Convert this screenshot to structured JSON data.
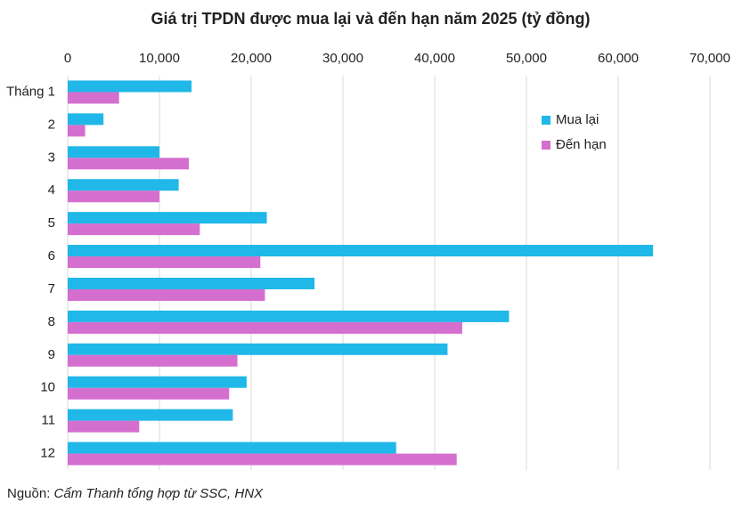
{
  "chart_data": {
    "type": "hbar",
    "title": "Giá trị TPDN được mua lại và đến hạn năm 2025 (tỷ đồng)",
    "categories": [
      "Tháng 1",
      "2",
      "3",
      "4",
      "5",
      "6",
      "7",
      "8",
      "9",
      "10",
      "11",
      "12"
    ],
    "series": [
      {
        "name": "Mua lại",
        "color": "#1fb8e8",
        "values": [
          13500,
          3900,
          10000,
          12100,
          21700,
          63800,
          26900,
          48100,
          41400,
          19500,
          18000,
          35800
        ]
      },
      {
        "name": "Đến hạn",
        "color": "#d56fcf",
        "values": [
          5600,
          1900,
          13200,
          10000,
          14400,
          21000,
          21500,
          43000,
          18500,
          17600,
          7800,
          42400
        ]
      }
    ],
    "xlim": [
      0,
      70000
    ],
    "xticks": [
      0,
      {
        "value": 10000,
        "label": "10,000"
      },
      {
        "value": 20000,
        "label": "20,000"
      },
      {
        "value": 30000,
        "label": "30,000"
      },
      {
        "value": 40000,
        "label": "40,000"
      },
      {
        "value": 50000,
        "label": "50,000"
      },
      {
        "value": 60000,
        "label": "60,000"
      },
      {
        "value": 70000,
        "label": "70,000"
      }
    ],
    "grid": true,
    "legend": "right",
    "source": {
      "label": "Nguồn:",
      "text": "Cẩm Thanh tổng hợp từ SSC, HNX"
    }
  }
}
